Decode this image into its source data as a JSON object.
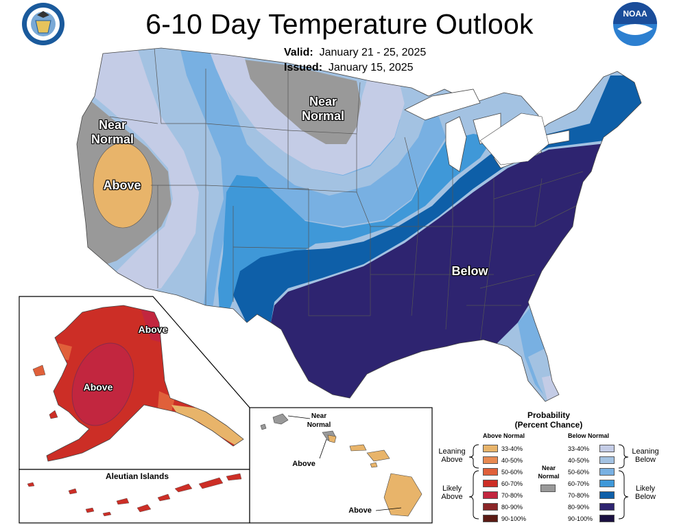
{
  "header": {
    "title": "6-10 Day Temperature Outlook",
    "valid_label": "Valid:",
    "valid_value": "January 21 - 25, 2025",
    "issued_label": "Issued:",
    "issued_value": "January 15, 2025",
    "left_logo_icon": "department-of-commerce-seal-icon",
    "right_logo_icon": "noaa-logo-icon",
    "noaa_text": "NOAA"
  },
  "map_labels": {
    "west_near_normal": "Near\nNormal",
    "west_above": "Above",
    "north_near_normal": "Near\nNormal",
    "east_below": "Below",
    "alaska_above_1": "Above",
    "alaska_above_2": "Above",
    "aleutian_title": "Aleutian Islands",
    "hawaii_near_normal": "Near\nNormal",
    "hawaii_above_1": "Above",
    "hawaii_above_2": "Above"
  },
  "legend": {
    "title": "Probability",
    "subtitle": "(Percent Chance)",
    "above_header": "Above Normal",
    "below_header": "Below Normal",
    "near_normal": "Near\nNormal",
    "leaning_above": "Leaning\nAbove",
    "likely_above": "Likely\nAbove",
    "leaning_below": "Leaning\nBelow",
    "likely_below": "Likely\nBelow",
    "ranges": [
      "33-40%",
      "40-50%",
      "50-60%",
      "60-70%",
      "70-80%",
      "80-90%",
      "90-100%"
    ],
    "above_colors": [
      "#e8b46a",
      "#e88a52",
      "#e0603a",
      "#cc2e26",
      "#c2263f",
      "#8a2628",
      "#5a1a14"
    ],
    "below_colors": [
      "#c4cce6",
      "#a3c2e2",
      "#78b0e2",
      "#3f98d8",
      "#0e5fa8",
      "#2e2470",
      "#1a1040"
    ],
    "near_color": "#999999"
  },
  "colors": {
    "near_normal": "#999999",
    "above_33": "#e8b46a",
    "above_40": "#e88a52",
    "above_50": "#e0603a",
    "above_60": "#cc2e26",
    "above_70": "#c2263f",
    "below_33": "#c4cce6",
    "below_40": "#a3c2e2",
    "below_50": "#78b0e2",
    "below_60": "#3f98d8",
    "below_70": "#0e5fa8",
    "below_80": "#2e2470"
  }
}
